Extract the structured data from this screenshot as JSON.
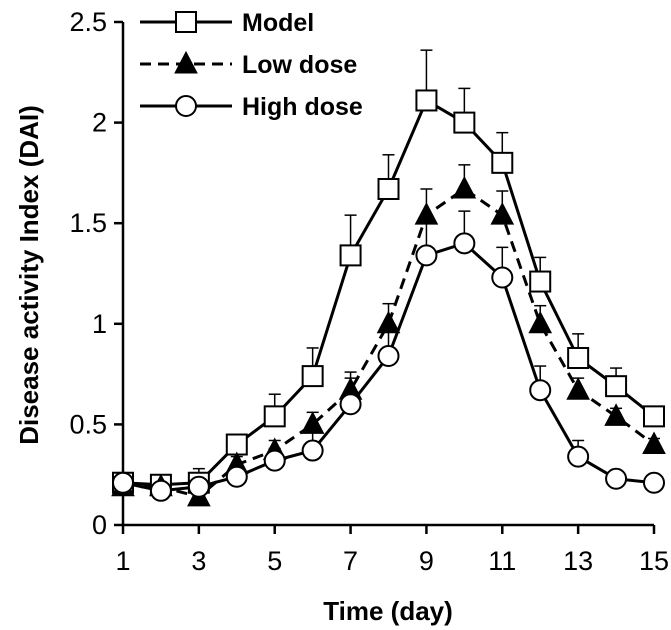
{
  "chart_data": {
    "type": "line",
    "title": "",
    "xlabel": "Time (day)",
    "ylabel": "Disease activity Index (DAI)",
    "xlim": [
      1,
      15
    ],
    "ylim": [
      0,
      2.5
    ],
    "xticks": [
      1,
      3,
      5,
      7,
      9,
      11,
      13,
      15
    ],
    "yticks": [
      0,
      0.5,
      1,
      1.5,
      2,
      2.5
    ],
    "xtick_labels": [
      "1",
      "3",
      "5",
      "7",
      "9",
      "11",
      "13",
      "15"
    ],
    "ytick_labels": [
      "0",
      "0.5",
      "1",
      "1.5",
      "2",
      "2.5"
    ],
    "grid": false,
    "legend_position": "top-left",
    "x": [
      1,
      2,
      3,
      4,
      5,
      6,
      7,
      8,
      9,
      10,
      11,
      12,
      13,
      14,
      15
    ],
    "series": [
      {
        "name": "Model",
        "marker": "open-square",
        "line_style": "solid",
        "color": "#000000",
        "values": [
          0.21,
          0.2,
          0.21,
          0.4,
          0.54,
          0.74,
          1.34,
          1.67,
          2.11,
          2.0,
          1.8,
          1.21,
          0.83,
          0.69,
          0.54
        ],
        "errors": [
          0.05,
          0.04,
          0.07,
          0.05,
          0.11,
          0.14,
          0.2,
          0.17,
          0.25,
          0.17,
          0.15,
          0.12,
          0.12,
          0.09,
          0.03
        ]
      },
      {
        "name": "Low dose",
        "marker": "filled-triangle",
        "line_style": "dashed",
        "color": "#000000",
        "values": [
          0.19,
          0.19,
          0.14,
          0.3,
          0.37,
          0.5,
          0.67,
          1.0,
          1.54,
          1.67,
          1.54,
          1.0,
          0.67,
          0.54,
          0.4
        ],
        "errors": [
          0.03,
          0.03,
          0.03,
          0.04,
          0.05,
          0.06,
          0.09,
          0.1,
          0.13,
          0.12,
          0.12,
          0.09,
          0.06,
          0.04,
          0.03
        ]
      },
      {
        "name": "High dose",
        "marker": "open-circle",
        "line_style": "solid",
        "color": "#000000",
        "values": [
          0.21,
          0.17,
          0.19,
          0.24,
          0.32,
          0.37,
          0.6,
          0.84,
          1.34,
          1.4,
          1.23,
          0.67,
          0.34,
          0.23,
          0.21
        ],
        "errors": [
          0.03,
          0.03,
          0.03,
          0.04,
          0.06,
          0.11,
          0.13,
          0.15,
          0.2,
          0.16,
          0.15,
          0.12,
          0.08,
          0.03,
          0.03
        ]
      }
    ]
  }
}
